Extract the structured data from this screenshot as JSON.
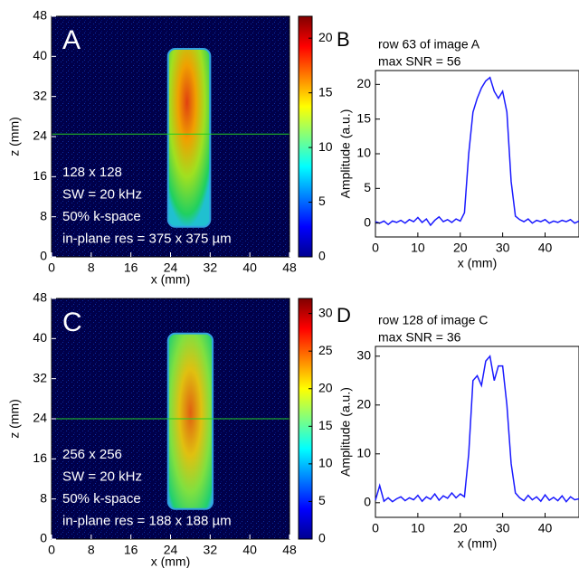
{
  "chart_data": [
    {
      "type": "image",
      "panel_label": "A",
      "colormap": "jet",
      "annotations": [
        "128 x 128",
        "SW = 20 kHz",
        "50% k-space",
        "in-plane res = 375 x 375 µm"
      ],
      "xlabel": "x (mm)",
      "ylabel": "z (mm)",
      "xlim": [
        0,
        48
      ],
      "ylim": [
        0,
        48
      ],
      "xticks": [
        0,
        8,
        16,
        24,
        32,
        40,
        48
      ],
      "yticks": [
        0,
        8,
        16,
        24,
        32,
        40,
        48
      ],
      "clim": [
        0,
        22
      ],
      "cticks": [
        0,
        5,
        10,
        15,
        20
      ],
      "hline": 24.5,
      "hline_color": "#22cc22"
    },
    {
      "type": "line",
      "panel_label": "B",
      "annotations": [
        "row 63 of image A",
        "max SNR = 56"
      ],
      "xlabel": "x (mm)",
      "ylabel": "Amplitude (a.u.)",
      "color": "#1a1aff",
      "xlim": [
        0,
        48
      ],
      "ylim": [
        -2,
        22
      ],
      "xticks": [
        0,
        10,
        20,
        30,
        40
      ],
      "yticks": [
        0,
        5,
        10,
        15,
        20
      ],
      "x": [
        0,
        1,
        2,
        3,
        4,
        5,
        6,
        7,
        8,
        9,
        10,
        11,
        12,
        13,
        14,
        15,
        16,
        17,
        18,
        19,
        20,
        21,
        22,
        23,
        24,
        25,
        26,
        27,
        28,
        29,
        30,
        31,
        32,
        33,
        34,
        35,
        36,
        37,
        38,
        39,
        40,
        41,
        42,
        43,
        44,
        45,
        46,
        47,
        48
      ],
      "values": [
        0.2,
        0,
        0.3,
        -0.2,
        0.3,
        0.1,
        0.4,
        0,
        0.5,
        0.2,
        0.8,
        0.1,
        0.6,
        -0.3,
        0.4,
        0.9,
        0.2,
        0.5,
        0.1,
        0.6,
        0.3,
        1.5,
        10,
        16,
        18,
        19.5,
        20.5,
        21,
        19,
        18,
        19,
        16,
        6,
        1,
        0.5,
        0.2,
        0.6,
        0,
        0.4,
        0.2,
        0.5,
        0,
        0.3,
        0.1,
        0.4,
        0.2,
        0.5,
        0,
        0.3
      ]
    },
    {
      "type": "image",
      "panel_label": "C",
      "colormap": "jet",
      "annotations": [
        "256 x 256",
        "SW = 20 kHz",
        "50% k-space",
        "in-plane res = 188 x 188 µm"
      ],
      "xlabel": "x (mm)",
      "ylabel": "z (mm)",
      "xlim": [
        0,
        48
      ],
      "ylim": [
        0,
        48
      ],
      "xticks": [
        0,
        8,
        16,
        24,
        32,
        40,
        48
      ],
      "yticks": [
        0,
        8,
        16,
        24,
        32,
        40,
        48
      ],
      "clim": [
        0,
        32
      ],
      "cticks": [
        0,
        5,
        10,
        15,
        20,
        25,
        30
      ],
      "hline": 24,
      "hline_color": "#22cc22"
    },
    {
      "type": "line",
      "panel_label": "D",
      "annotations": [
        "row 128 of image C",
        "max SNR = 36"
      ],
      "xlabel": "x (mm)",
      "ylabel": "Amplitude (a.u.)",
      "color": "#1a1aff",
      "xlim": [
        0,
        48
      ],
      "ylim": [
        -3,
        32
      ],
      "xticks": [
        0,
        10,
        20,
        30,
        40
      ],
      "yticks": [
        0,
        10,
        20,
        30
      ],
      "x": [
        0,
        1,
        2,
        3,
        4,
        5,
        6,
        7,
        8,
        9,
        10,
        11,
        12,
        13,
        14,
        15,
        16,
        17,
        18,
        19,
        20,
        21,
        22,
        23,
        24,
        25,
        26,
        27,
        28,
        29,
        30,
        31,
        32,
        33,
        34,
        35,
        36,
        37,
        38,
        39,
        40,
        41,
        42,
        43,
        44,
        45,
        46,
        47,
        48
      ],
      "values": [
        0.5,
        3.5,
        0.3,
        1,
        0.2,
        0.8,
        1.2,
        0.4,
        1,
        0.6,
        1.5,
        0.3,
        1.2,
        0.7,
        1.8,
        0.5,
        1.4,
        0.9,
        2,
        1,
        1.8,
        1.2,
        10,
        25,
        26,
        24,
        29,
        30,
        25,
        28,
        28,
        20,
        8,
        2,
        1,
        0.4,
        1.5,
        0.6,
        1.2,
        0.3,
        1.6,
        0.5,
        1.1,
        0.4,
        1.4,
        0.2,
        1.2,
        0.6,
        0.8
      ]
    }
  ]
}
